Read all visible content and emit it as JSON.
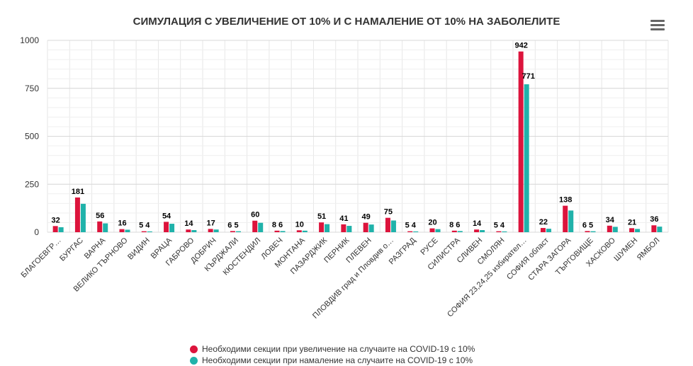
{
  "chart_data": {
    "type": "bar",
    "title": "СИМУЛАЦИЯ С УВЕЛИЧЕНИЕ ОТ 10% И С НАМАЛЕНИЕ ОТ 10% НА ЗАБОЛЕЛИТЕ",
    "ylim": [
      0,
      1000
    ],
    "yticks": [
      0,
      250,
      500,
      750,
      1000
    ],
    "categories": [
      "БЛАГОЕВГР…",
      "БУРГАС",
      "ВАРНА",
      "ВЕЛИКО ТЪРНОВО",
      "ВИДИН",
      "ВРАЦА",
      "ГАБРОВО",
      "ДОБРИЧ",
      "КЪРДЖАЛИ",
      "КЮСТЕНДИЛ",
      "ЛОВЕЧ",
      "МОНТАНА",
      "ПАЗАРДЖИК",
      "ПЕРНИК",
      "ПЛЕВЕН",
      "ПЛОВДИВ град и Пловдив о…",
      "РАЗГРАД",
      "РУСЕ",
      "СИЛИСТРА",
      "СЛИВЕН",
      "СМОЛЯН",
      "СОФИЯ 23,24,25 избирател…",
      "СОФИЯ област",
      "СТАРА ЗАГОРА",
      "ТЪРГОВИЩЕ",
      "ХАСКОВО",
      "ШУМЕН",
      "ЯМБОЛ"
    ],
    "series": [
      {
        "name": "Необходими секции при увеличение на случаите на COVID-19 с 10%",
        "color": "#dc143c",
        "values": [
          32,
          181,
          56,
          16,
          5,
          54,
          14,
          17,
          6,
          60,
          8,
          10,
          51,
          41,
          49,
          75,
          5,
          20,
          8,
          14,
          5,
          942,
          22,
          138,
          6,
          34,
          21,
          36
        ]
      },
      {
        "name": "Необходими секции при намаление на случаите на COVID-19 с 10%",
        "color": "#20b2aa",
        "values": [
          26,
          148,
          46,
          13,
          4,
          44,
          11,
          14,
          5,
          49,
          6,
          8,
          42,
          33,
          40,
          61,
          4,
          16,
          6,
          11,
          4,
          771,
          18,
          113,
          5,
          28,
          17,
          29
        ]
      }
    ],
    "labels_low": [
      "32",
      "181",
      "56",
      "16",
      "5 4",
      "54",
      "14",
      "17",
      "6 5",
      "60",
      "8 6",
      "10",
      "51",
      "41",
      "49",
      "75",
      "5 4",
      "20",
      "8 6",
      "14",
      "5 4",
      "942",
      "22",
      "138",
      "6 5",
      "34",
      "21",
      "36"
    ],
    "labels_high": [
      "",
      "",
      "",
      "",
      "",
      "",
      "",
      "",
      "",
      "",
      "",
      "",
      "",
      "",
      "",
      "",
      "",
      "",
      "",
      "",
      "",
      "771",
      "",
      "",
      "",
      "",
      "",
      ""
    ]
  },
  "ui": {
    "menu_icon": "hamburger-menu-icon"
  }
}
